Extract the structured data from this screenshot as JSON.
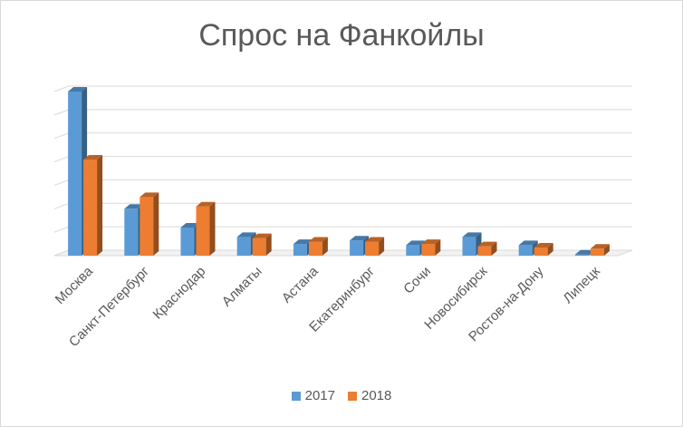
{
  "chart_data": {
    "type": "bar",
    "title": "Спрос на Фанкойлы",
    "xlabel": "",
    "ylabel": "",
    "ylim": [
      0,
      7
    ],
    "grid": true,
    "legend_position": "bottom",
    "categories": [
      "Москва",
      "Санкт-Петербург",
      "Краснодар",
      "Алматы",
      "Астана",
      "Екатеринбург",
      "Сочи",
      "Новосибирск",
      "Ростов-на-Дону",
      "Липецк"
    ],
    "series": [
      {
        "name": "2017",
        "color": "#5b9bd5",
        "values": [
          7.0,
          2.0,
          1.2,
          0.8,
          0.5,
          0.65,
          0.45,
          0.8,
          0.45,
          0.05
        ]
      },
      {
        "name": "2018",
        "color": "#ed7d31",
        "values": [
          4.1,
          2.5,
          2.1,
          0.75,
          0.6,
          0.6,
          0.5,
          0.4,
          0.35,
          0.3
        ]
      }
    ]
  }
}
